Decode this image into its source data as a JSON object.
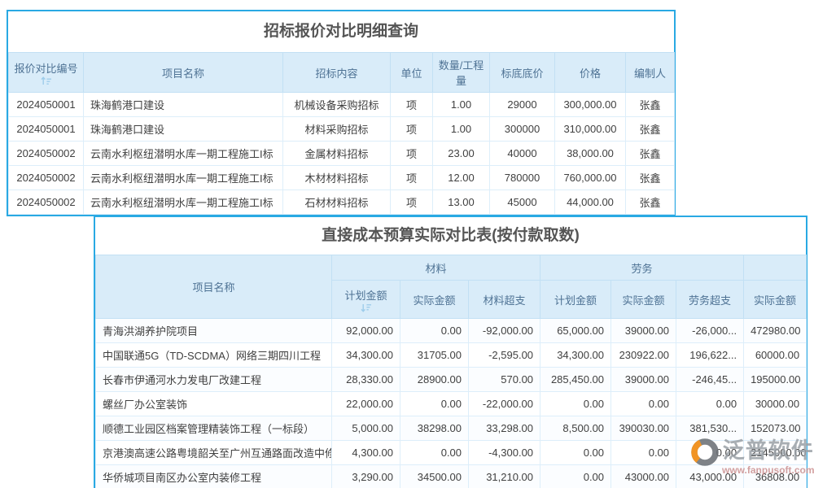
{
  "colors": {
    "card_border": "#29a9e3",
    "header_bg": "#d9ecf9",
    "header_fg": "#4e7294",
    "title_fg": "#555555",
    "link_blue": "#2f8fdd",
    "alert_red": "#e8413c",
    "dark_fg": "#404040",
    "sort_icon": "#9ecdeb"
  },
  "table1": {
    "title": "招标报价对比明细查询",
    "headers": [
      "报价对比编号",
      "项目名称",
      "招标内容",
      "单位",
      "数量/工程量",
      "标底底价",
      "价格",
      "编制人"
    ],
    "sort_icon": "sort-ascending-icon",
    "rows": [
      [
        "2024050001",
        "珠海鹤港口建设",
        "机械设备采购招标",
        "项",
        "1.00",
        "29000",
        "300,000.00",
        "张鑫"
      ],
      [
        "2024050001",
        "珠海鹤港口建设",
        "材料采购招标",
        "项",
        "1.00",
        "300000",
        "310,000.00",
        "张鑫"
      ],
      [
        "2024050002",
        "云南水利枢纽潜明水库一期工程施工I标",
        "金属材料招标",
        "项",
        "23.00",
        "40000",
        "38,000.00",
        "张鑫"
      ],
      [
        "2024050002",
        "云南水利枢纽潜明水库一期工程施工I标",
        "木材材料招标",
        "项",
        "12.00",
        "780000",
        "760,000.00",
        "张鑫"
      ],
      [
        "2024050002",
        "云南水利枢纽潜明水库一期工程施工I标",
        "石材材料招标",
        "项",
        "13.00",
        "45000",
        "44,000.00",
        "张鑫"
      ]
    ]
  },
  "table2": {
    "title": "直接成本预算实际对比表(按付款取数)",
    "project_header": "项目名称",
    "group_material": "材料",
    "group_labor": "劳务",
    "sub_headers": [
      "计划金额",
      "实际金额",
      "材料超支",
      "计划金额",
      "实际金额",
      "劳务超支",
      "实际金额"
    ],
    "sort_icon": "sort-descending-icon",
    "rows": [
      {
        "name": "青海洪湖养护院项目",
        "cells": [
          "92,000.00",
          "0.00",
          "-92,000.00",
          "65,000.00",
          "39000.00",
          "-26,000...",
          "472980.00"
        ]
      },
      {
        "name": "中国联通5G（TD-SCDMA）网络三期四川工程",
        "cells": [
          "34,300.00",
          "31705.00",
          "-2,595.00",
          "34,300.00",
          "230922.00",
          "196,622...",
          "60000.00"
        ]
      },
      {
        "name": "长春市伊通河水力发电厂改建工程",
        "cells": [
          "28,330.00",
          "28900.00",
          "570.00",
          "285,450.00",
          "39000.00",
          "-246,45...",
          "195000.00"
        ]
      },
      {
        "name": "螺丝厂办公室装饰",
        "cells": [
          "22,000.00",
          "0.00",
          "-22,000.00",
          "0.00",
          "0.00",
          "0.00",
          "30000.00"
        ]
      },
      {
        "name": "顺德工业园区档案管理精装饰工程（一标段）",
        "cells": [
          "5,000.00",
          "38298.00",
          "33,298.00",
          "8,500.00",
          "390030.00",
          "381,530...",
          "152073.00"
        ]
      },
      {
        "name": "京港澳高速公路粤境韶关至广州互通路面改造中修工",
        "cells": [
          "4,300.00",
          "0.00",
          "-4,300.00",
          "0.00",
          "0.00",
          "0.00",
          "2145000.00"
        ]
      },
      {
        "name": "华侨城项目南区办公室内装修工程",
        "cells": [
          "3,290.00",
          "34500.00",
          "31,210.00",
          "0.00",
          "43000.00",
          "43,000.00",
          "36808.00"
        ]
      }
    ]
  },
  "watermark": {
    "logo": "fanpu-logo-icon",
    "brand": "泛普软件",
    "url": "www.fanpusoft.com"
  }
}
